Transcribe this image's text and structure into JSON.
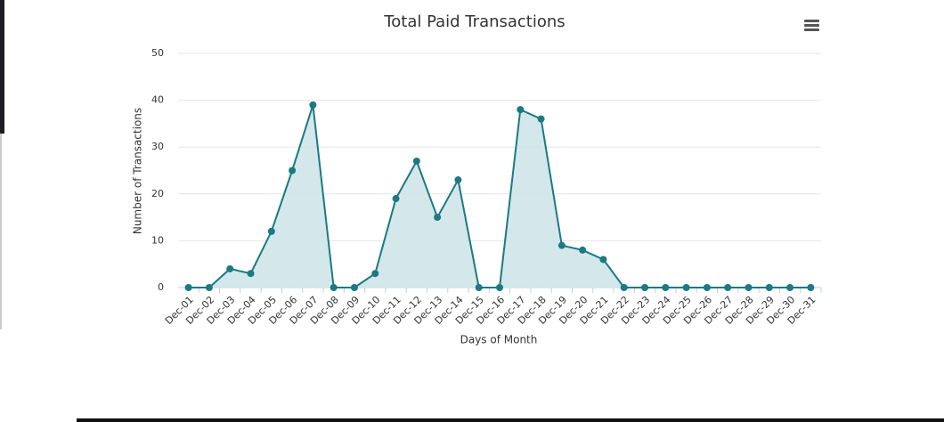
{
  "chart_data": {
    "type": "area",
    "title": "Total Paid Transactions",
    "x_label": "Days of Month",
    "y_label": "Number of Transactions",
    "categories": [
      "Dec-01",
      "Dec-02",
      "Dec-03",
      "Dec-04",
      "Dec-05",
      "Dec-06",
      "Dec-07",
      "Dec-08",
      "Dec-09",
      "Dec-10",
      "Dec-11",
      "Dec-12",
      "Dec-13",
      "Dec-14",
      "Dec-15",
      "Dec-16",
      "Dec-17",
      "Dec-18",
      "Dec-19",
      "Dec-20",
      "Dec-21",
      "Dec-22",
      "Dec-23",
      "Dec-24",
      "Dec-25",
      "Dec-26",
      "Dec-27",
      "Dec-28",
      "Dec-29",
      "Dec-30",
      "Dec-31"
    ],
    "series": [
      {
        "name": "Transactions",
        "color": "#1b7a82",
        "values": [
          0,
          0,
          4,
          3,
          12,
          25,
          39,
          0,
          0,
          3,
          19,
          27,
          15,
          23,
          0,
          0,
          38,
          36,
          9,
          8,
          6,
          0,
          0,
          0,
          0,
          0,
          0,
          0,
          0,
          0,
          0
        ]
      }
    ],
    "fill_color": "#cfe4e9",
    "ylim": [
      0,
      50
    ],
    "yticks": [
      0,
      10,
      20,
      30,
      40,
      50
    ],
    "grid": true
  }
}
